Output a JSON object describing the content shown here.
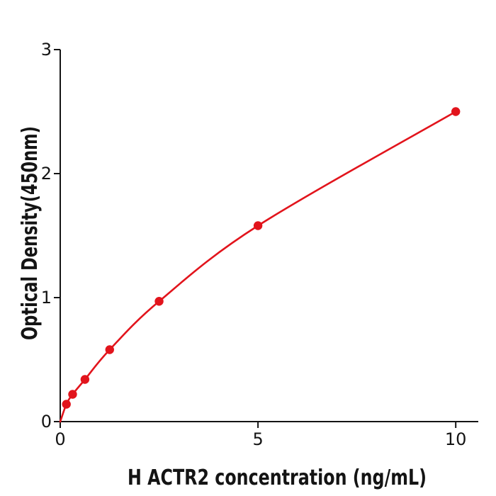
{
  "figure": {
    "background": "#ffffff"
  },
  "chart_data": {
    "type": "line",
    "title": "",
    "xlabel": "H  ACTR2 concentration (ng/mL)",
    "ylabel": "Optical Density(450nm)",
    "x": [
      0.156,
      0.313,
      0.625,
      1.25,
      2.5,
      5,
      10
    ],
    "y": [
      0.14,
      0.22,
      0.34,
      0.58,
      0.97,
      1.58,
      2.5
    ],
    "curve_start": {
      "x": 0,
      "y": 0
    },
    "xticks": [
      0,
      5,
      10
    ],
    "xtick_labels": [
      "0",
      "5",
      "10"
    ],
    "yticks": [
      0,
      1,
      2,
      3
    ],
    "ytick_labels": [
      "0",
      "1",
      "2",
      "3"
    ],
    "xlim": [
      0,
      10.57
    ],
    "ylim": [
      0,
      3
    ],
    "grid": false,
    "legend": null,
    "line_color": "#e2141c",
    "marker_color": "#e2141c",
    "axis_color": "#141414"
  }
}
